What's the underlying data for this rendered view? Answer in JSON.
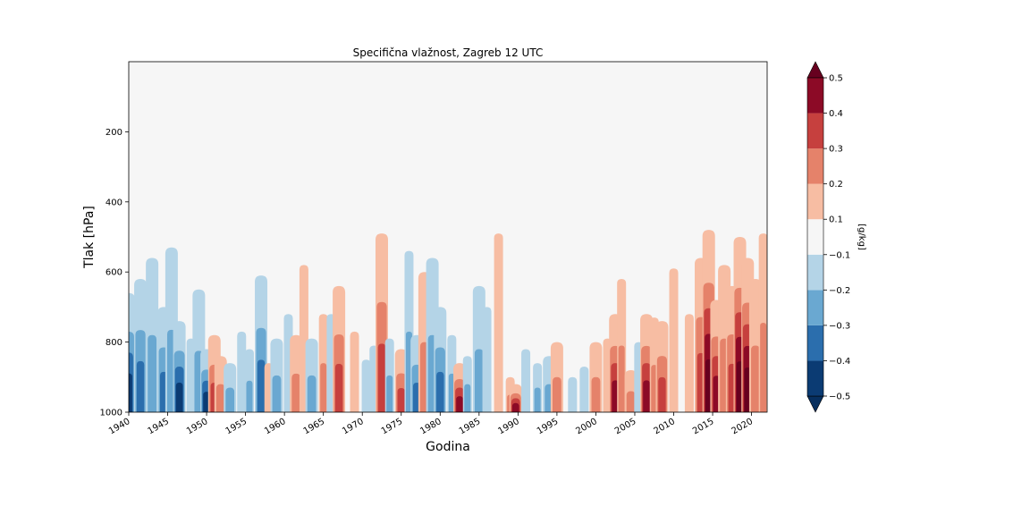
{
  "chart_data": {
    "type": "heatmap",
    "title": "Specifična vlažnost, Zagreb 12 UTC",
    "xlabel": "Godina",
    "ylabel": "Tlak [hPa]",
    "colorbar_label": "[g/kg]",
    "xlim": [
      1940,
      2022
    ],
    "ylim": [
      1000,
      0
    ],
    "x_ticks": [
      "1940",
      "1945",
      "1950",
      "1955",
      "1960",
      "1965",
      "1970",
      "1975",
      "1980",
      "1985",
      "1990",
      "1995",
      "2000",
      "2005",
      "2010",
      "2015",
      "2020"
    ],
    "y_ticks": [
      "200",
      "400",
      "600",
      "800",
      "1000"
    ],
    "levels": [
      -0.5,
      -0.4,
      -0.3,
      -0.2,
      -0.1,
      0.1,
      0.2,
      0.3,
      0.4,
      0.5
    ],
    "colorbar_ticks": [
      "−0.5",
      "−0.4",
      "−0.3",
      "−0.2",
      "−0.1",
      "0.1",
      "0.2",
      "0.3",
      "0.4",
      "0.5"
    ],
    "level_colors": [
      "#0b3b73",
      "#2b6ead",
      "#6aa8d1",
      "#b4d4e7",
      "#f6f6f6",
      "#f7bda3",
      "#e5826a",
      "#c6403e",
      "#8c0a26"
    ],
    "extend_colors": {
      "below": "#072f5f",
      "above": "#67001f"
    },
    "background_color": "#f6f6f6",
    "anomaly_columns": [
      {
        "year": 1940.0,
        "value": -0.45,
        "top": 660
      },
      {
        "year": 1941.5,
        "value": -0.38,
        "top": 620
      },
      {
        "year": 1943.0,
        "value": -0.3,
        "top": 560
      },
      {
        "year": 1944.5,
        "value": -0.35,
        "top": 700
      },
      {
        "year": 1945.5,
        "value": -0.25,
        "top": 530
      },
      {
        "year": 1946.5,
        "value": -0.42,
        "top": 740
      },
      {
        "year": 1948.0,
        "value": -0.18,
        "top": 790
      },
      {
        "year": 1949.0,
        "value": -0.28,
        "top": 650
      },
      {
        "year": 1950.0,
        "value": -0.4,
        "top": 820
      },
      {
        "year": 1951.0,
        "value": 0.35,
        "top": 780
      },
      {
        "year": 1951.8,
        "value": 0.25,
        "top": 840
      },
      {
        "year": 1953.0,
        "value": -0.25,
        "top": 860
      },
      {
        "year": 1954.5,
        "value": -0.18,
        "top": 770
      },
      {
        "year": 1955.5,
        "value": -0.22,
        "top": 820
      },
      {
        "year": 1957.0,
        "value": -0.32,
        "top": 610
      },
      {
        "year": 1958.0,
        "value": 0.15,
        "top": 860
      },
      {
        "year": 1959.0,
        "value": -0.25,
        "top": 790
      },
      {
        "year": 1960.5,
        "value": -0.18,
        "top": 720
      },
      {
        "year": 1961.5,
        "value": 0.28,
        "top": 780
      },
      {
        "year": 1962.5,
        "value": 0.15,
        "top": 580
      },
      {
        "year": 1963.5,
        "value": -0.3,
        "top": 790
      },
      {
        "year": 1965.0,
        "value": 0.2,
        "top": 720
      },
      {
        "year": 1966.0,
        "value": -0.15,
        "top": 720
      },
      {
        "year": 1967.0,
        "value": 0.38,
        "top": 640
      },
      {
        "year": 1969.0,
        "value": 0.15,
        "top": 770
      },
      {
        "year": 1970.5,
        "value": -0.15,
        "top": 850
      },
      {
        "year": 1971.5,
        "value": -0.18,
        "top": 810
      },
      {
        "year": 1972.5,
        "value": 0.32,
        "top": 490
      },
      {
        "year": 1973.5,
        "value": -0.22,
        "top": 790
      },
      {
        "year": 1975.0,
        "value": 0.36,
        "top": 820
      },
      {
        "year": 1976.0,
        "value": -0.22,
        "top": 540
      },
      {
        "year": 1977.0,
        "value": -0.35,
        "top": 780
      },
      {
        "year": 1978.0,
        "value": 0.25,
        "top": 600
      },
      {
        "year": 1979.0,
        "value": -0.3,
        "top": 560
      },
      {
        "year": 1980.0,
        "value": -0.38,
        "top": 700
      },
      {
        "year": 1981.5,
        "value": -0.2,
        "top": 780
      },
      {
        "year": 1982.5,
        "value": 0.4,
        "top": 860
      },
      {
        "year": 1983.5,
        "value": -0.22,
        "top": 840
      },
      {
        "year": 1985.0,
        "value": -0.28,
        "top": 640
      },
      {
        "year": 1986.0,
        "value": -0.18,
        "top": 700
      },
      {
        "year": 1987.5,
        "value": 0.18,
        "top": 490
      },
      {
        "year": 1989.0,
        "value": 0.2,
        "top": 900
      },
      {
        "year": 1989.7,
        "value": 0.4,
        "top": 920
      },
      {
        "year": 1991.0,
        "value": -0.15,
        "top": 820
      },
      {
        "year": 1992.5,
        "value": -0.22,
        "top": 860
      },
      {
        "year": 1994.0,
        "value": -0.28,
        "top": 840
      },
      {
        "year": 1995.0,
        "value": 0.28,
        "top": 800
      },
      {
        "year": 1997.0,
        "value": -0.15,
        "top": 900
      },
      {
        "year": 1998.5,
        "value": -0.18,
        "top": 870
      },
      {
        "year": 2000.0,
        "value": 0.26,
        "top": 800
      },
      {
        "year": 2001.5,
        "value": 0.18,
        "top": 790
      },
      {
        "year": 2002.5,
        "value": 0.42,
        "top": 720
      },
      {
        "year": 2003.3,
        "value": 0.22,
        "top": 620
      },
      {
        "year": 2004.5,
        "value": 0.25,
        "top": 880
      },
      {
        "year": 2005.5,
        "value": -0.15,
        "top": 800
      },
      {
        "year": 2006.5,
        "value": 0.4,
        "top": 720
      },
      {
        "year": 2007.5,
        "value": 0.2,
        "top": 730
      },
      {
        "year": 2008.5,
        "value": 0.32,
        "top": 740
      },
      {
        "year": 2010.0,
        "value": 0.15,
        "top": 590
      },
      {
        "year": 2012.0,
        "value": 0.18,
        "top": 720
      },
      {
        "year": 2013.5,
        "value": 0.32,
        "top": 560
      },
      {
        "year": 2014.5,
        "value": 0.55,
        "top": 480
      },
      {
        "year": 2015.5,
        "value": 0.45,
        "top": 680
      },
      {
        "year": 2016.5,
        "value": 0.28,
        "top": 580
      },
      {
        "year": 2017.5,
        "value": 0.35,
        "top": 640
      },
      {
        "year": 2018.5,
        "value": 0.55,
        "top": 500
      },
      {
        "year": 2019.5,
        "value": 0.5,
        "top": 560
      },
      {
        "year": 2020.5,
        "value": 0.3,
        "top": 620
      },
      {
        "year": 2021.5,
        "value": 0.2,
        "top": 490
      }
    ]
  }
}
